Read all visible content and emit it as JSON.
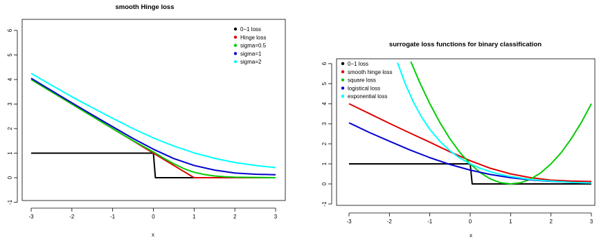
{
  "chart_data": [
    {
      "type": "line",
      "title": "smooth Hinge loss",
      "xlabel": "x",
      "ylabel": "",
      "xlim": [
        -3,
        3
      ],
      "ylim": [
        -1,
        6
      ],
      "xticks": [
        -3,
        -2,
        -1,
        0,
        1,
        2,
        3
      ],
      "yticks": [
        -1,
        0,
        1,
        2,
        3,
        4,
        5,
        6
      ],
      "legend_position": "top-right",
      "series": [
        {
          "name": "0−1 loss",
          "color": "#000000",
          "x": [
            -3,
            0,
            0.05,
            3
          ],
          "y": [
            1,
            1,
            0,
            0
          ]
        },
        {
          "name": "Hinge loss",
          "color": "#DF0000",
          "x": [
            -3,
            1,
            3
          ],
          "y": [
            4,
            0,
            0
          ]
        },
        {
          "name": "sigma=0.5",
          "color": "#00CD00",
          "x": [
            -3,
            -2.5,
            -2,
            -1.5,
            -1,
            -0.5,
            0,
            0.25,
            0.5,
            0.75,
            1,
            1.25,
            1.5,
            1.75,
            2,
            2.5,
            3
          ],
          "y": [
            4.0,
            3.5,
            3.0,
            2.5,
            2.0,
            1.51,
            1.05,
            0.8,
            0.57,
            0.37,
            0.22,
            0.13,
            0.07,
            0.04,
            0.02,
            0.01,
            0.0
          ]
        },
        {
          "name": "sigma=1",
          "color": "#0000CD",
          "x": [
            -3,
            -2.5,
            -2,
            -1.5,
            -1,
            -0.5,
            0,
            0.5,
            1,
            1.5,
            2,
            2.5,
            3
          ],
          "y": [
            4.05,
            3.55,
            3.05,
            2.56,
            2.08,
            1.6,
            1.16,
            0.78,
            0.5,
            0.31,
            0.19,
            0.14,
            0.12
          ]
        },
        {
          "name": "sigma=2",
          "color": "#00FFFF",
          "x": [
            -3,
            -2.5,
            -2,
            -1.5,
            -1,
            -0.5,
            0,
            0.5,
            1,
            1.5,
            2,
            2.5,
            3
          ],
          "y": [
            4.25,
            3.77,
            3.3,
            2.85,
            2.42,
            2.0,
            1.62,
            1.29,
            1.01,
            0.79,
            0.62,
            0.5,
            0.41
          ]
        }
      ]
    },
    {
      "type": "line",
      "title": "surrogate loss functions for binary classification",
      "xlabel": "x",
      "ylabel": "",
      "xlim": [
        -3,
        3
      ],
      "ylim": [
        -1,
        6
      ],
      "xticks": [
        -3,
        -2,
        -1,
        0,
        1,
        2,
        3
      ],
      "yticks": [
        -1,
        0,
        1,
        2,
        3,
        4,
        5,
        6
      ],
      "legend_position": "top-left",
      "series": [
        {
          "name": "0−1 loss",
          "color": "#000000",
          "x": [
            -3,
            0,
            0.05,
            3
          ],
          "y": [
            1,
            1,
            0,
            0
          ]
        },
        {
          "name": "smooth hinge loss",
          "color": "#DF0000",
          "x": [
            -3,
            -2.5,
            -2,
            -1.5,
            -1,
            -0.5,
            0,
            0.5,
            1,
            1.5,
            2,
            2.5,
            3
          ],
          "y": [
            4.0,
            3.51,
            3.02,
            2.55,
            2.08,
            1.6,
            1.16,
            0.78,
            0.5,
            0.31,
            0.19,
            0.14,
            0.12
          ]
        },
        {
          "name": "square loss",
          "color": "#00CD00",
          "x": [
            -1.47,
            -1.25,
            -1,
            -0.75,
            -0.5,
            -0.25,
            0,
            0.25,
            0.5,
            0.75,
            1,
            1.25,
            1.5,
            1.75,
            2,
            2.25,
            2.5,
            2.75,
            3
          ],
          "y": [
            6.1,
            5.06,
            4.0,
            3.06,
            2.25,
            1.56,
            1.0,
            0.56,
            0.25,
            0.06,
            0.0,
            0.06,
            0.25,
            0.56,
            1.0,
            1.56,
            2.25,
            3.06,
            4.0
          ]
        },
        {
          "name": "logistical loss",
          "color": "#0000CD",
          "x": [
            -3,
            -2.5,
            -2,
            -1.5,
            -1,
            -0.5,
            0,
            0.5,
            1,
            1.5,
            2,
            2.5,
            3
          ],
          "y": [
            3.05,
            2.57,
            2.13,
            1.7,
            1.31,
            0.97,
            0.69,
            0.47,
            0.31,
            0.2,
            0.13,
            0.08,
            0.05
          ]
        },
        {
          "name": "exponential loss",
          "color": "#00FFFF",
          "x": [
            -1.8,
            -1.6,
            -1.4,
            -1.2,
            -1,
            -0.75,
            -0.5,
            -0.25,
            0,
            0.25,
            0.5,
            0.75,
            1,
            1.5,
            2,
            2.5,
            3
          ],
          "y": [
            6.05,
            4.95,
            4.06,
            3.32,
            2.72,
            2.12,
            1.65,
            1.28,
            1.0,
            0.78,
            0.61,
            0.47,
            0.37,
            0.22,
            0.14,
            0.08,
            0.05
          ]
        }
      ]
    }
  ]
}
